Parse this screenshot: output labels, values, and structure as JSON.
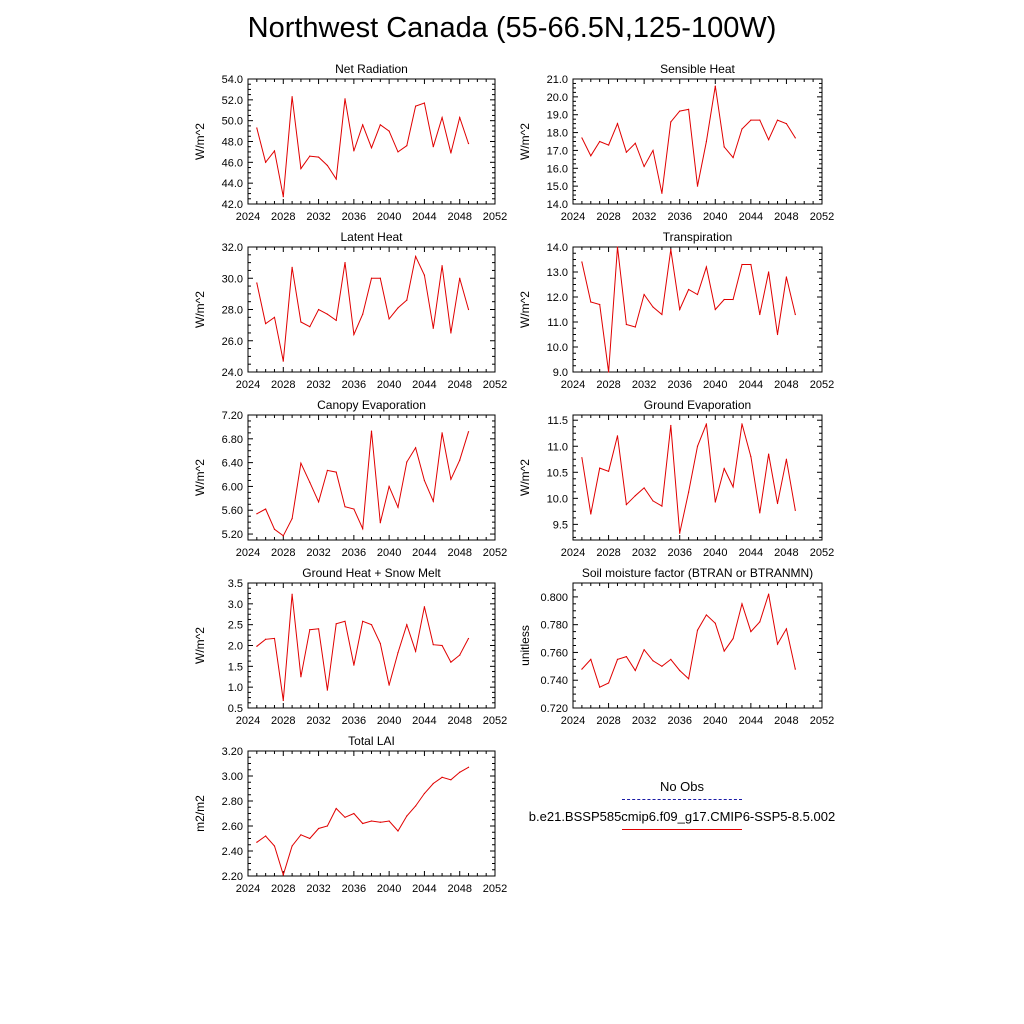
{
  "figure": {
    "title": "Northwest Canada (55-66.5N,125-100W)",
    "line_color": "#e00000",
    "obs_color": "#1a1aa6"
  },
  "legend": {
    "obs_label": "No Obs",
    "model_label": "b.e21.BSSP585cmip6.f09_g17.CMIP6-SSP5-8.5.002"
  },
  "chart_data": [
    {
      "type": "line",
      "title": "Net Radiation",
      "ylabel": "W/m^2",
      "xlim": [
        2024,
        2052
      ],
      "xticks": [
        2024,
        2028,
        2032,
        2036,
        2040,
        2044,
        2048,
        2052
      ],
      "ylim": [
        42,
        54
      ],
      "yticks": [
        "42.0",
        "44.0",
        "46.0",
        "48.0",
        "50.0",
        "52.0",
        "54.0"
      ],
      "x": [
        2025,
        2026,
        2027,
        2028,
        2029,
        2030,
        2031,
        2032,
        2033,
        2034,
        2035,
        2036,
        2037,
        2038,
        2039,
        2040,
        2041,
        2042,
        2043,
        2044,
        2045,
        2046,
        2047,
        2048,
        2049
      ],
      "values": [
        49.3,
        46.0,
        47.1,
        42.7,
        52.3,
        45.4,
        46.6,
        46.5,
        45.7,
        44.4,
        52.1,
        47.1,
        49.6,
        47.4,
        49.6,
        49.0,
        47.0,
        47.6,
        51.4,
        51.7,
        47.5,
        50.3,
        46.9,
        50.3,
        47.8
      ]
    },
    {
      "type": "line",
      "title": "Sensible Heat",
      "ylabel": "W/m^2",
      "xlim": [
        2024,
        2052
      ],
      "xticks": [
        2024,
        2028,
        2032,
        2036,
        2040,
        2044,
        2048,
        2052
      ],
      "ylim": [
        14,
        21
      ],
      "yticks": [
        "14.0",
        "15.0",
        "16.0",
        "17.0",
        "18.0",
        "19.0",
        "20.0",
        "21.0"
      ],
      "x": [
        2025,
        2026,
        2027,
        2028,
        2029,
        2030,
        2031,
        2032,
        2033,
        2034,
        2035,
        2036,
        2037,
        2038,
        2039,
        2040,
        2041,
        2042,
        2043,
        2044,
        2045,
        2046,
        2047,
        2048,
        2049
      ],
      "values": [
        17.7,
        16.7,
        17.5,
        17.3,
        18.5,
        16.9,
        17.4,
        16.1,
        17.0,
        14.6,
        18.6,
        19.2,
        19.3,
        15.0,
        17.5,
        20.6,
        17.2,
        16.6,
        18.2,
        18.7,
        18.7,
        17.6,
        18.7,
        18.5,
        17.7
      ]
    },
    {
      "type": "line",
      "title": "Latent Heat",
      "ylabel": "W/m^2",
      "xlim": [
        2024,
        2052
      ],
      "xticks": [
        2024,
        2028,
        2032,
        2036,
        2040,
        2044,
        2048,
        2052
      ],
      "ylim": [
        24,
        32
      ],
      "yticks": [
        "24.0",
        "26.0",
        "28.0",
        "30.0",
        "32.0"
      ],
      "x": [
        2025,
        2026,
        2027,
        2028,
        2029,
        2030,
        2031,
        2032,
        2033,
        2034,
        2035,
        2036,
        2037,
        2038,
        2039,
        2040,
        2041,
        2042,
        2043,
        2044,
        2045,
        2046,
        2047,
        2048,
        2049
      ],
      "values": [
        29.7,
        27.1,
        27.5,
        24.7,
        30.7,
        27.2,
        26.9,
        28.0,
        27.7,
        27.3,
        31.0,
        26.4,
        27.7,
        30.0,
        30.0,
        27.4,
        28.1,
        28.6,
        31.4,
        30.2,
        26.8,
        30.8,
        26.5,
        30.0,
        28.0
      ]
    },
    {
      "type": "line",
      "title": "Transpiration",
      "ylabel": "W/m^2",
      "xlim": [
        2024,
        2052
      ],
      "xticks": [
        2024,
        2028,
        2032,
        2036,
        2040,
        2044,
        2048,
        2052
      ],
      "ylim": [
        9,
        14
      ],
      "yticks": [
        "9.0",
        "10.0",
        "11.0",
        "12.0",
        "13.0",
        "14.0"
      ],
      "x": [
        2025,
        2026,
        2027,
        2028,
        2029,
        2030,
        2031,
        2032,
        2033,
        2034,
        2035,
        2036,
        2037,
        2038,
        2039,
        2040,
        2041,
        2042,
        2043,
        2044,
        2045,
        2046,
        2047,
        2048,
        2049
      ],
      "values": [
        13.4,
        11.8,
        11.7,
        9.0,
        14.0,
        10.9,
        10.8,
        12.1,
        11.6,
        11.3,
        13.9,
        11.5,
        12.3,
        12.1,
        13.2,
        11.5,
        11.9,
        11.9,
        13.3,
        13.3,
        11.3,
        13.0,
        10.5,
        12.8,
        11.3
      ]
    },
    {
      "type": "line",
      "title": "Canopy Evaporation",
      "ylabel": "W/m^2",
      "xlim": [
        2024,
        2052
      ],
      "xticks": [
        2024,
        2028,
        2032,
        2036,
        2040,
        2044,
        2048,
        2052
      ],
      "ylim": [
        5.1,
        7.2
      ],
      "yticks": [
        "5.20",
        "5.60",
        "6.00",
        "6.40",
        "6.80",
        "7.20"
      ],
      "x": [
        2025,
        2026,
        2027,
        2028,
        2029,
        2030,
        2031,
        2032,
        2033,
        2034,
        2035,
        2036,
        2037,
        2038,
        2039,
        2040,
        2041,
        2042,
        2043,
        2044,
        2045,
        2046,
        2047,
        2048,
        2049
      ],
      "values": [
        5.54,
        5.62,
        5.28,
        5.17,
        5.46,
        6.39,
        6.07,
        5.74,
        6.27,
        6.24,
        5.66,
        5.62,
        5.29,
        6.93,
        5.39,
        6.0,
        5.65,
        6.41,
        6.65,
        6.1,
        5.75,
        6.9,
        6.12,
        6.44,
        6.92
      ]
    },
    {
      "type": "line",
      "title": "Ground Evaporation",
      "ylabel": "W/m^2",
      "xlim": [
        2024,
        2052
      ],
      "xticks": [
        2024,
        2028,
        2032,
        2036,
        2040,
        2044,
        2048,
        2052
      ],
      "ylim": [
        9.2,
        11.6
      ],
      "yticks": [
        "9.5",
        "10.0",
        "10.5",
        "11.0",
        "11.5"
      ],
      "x": [
        2025,
        2026,
        2027,
        2028,
        2029,
        2030,
        2031,
        2032,
        2033,
        2034,
        2035,
        2036,
        2037,
        2038,
        2039,
        2040,
        2041,
        2042,
        2043,
        2044,
        2045,
        2046,
        2047,
        2048,
        2049
      ],
      "values": [
        10.78,
        9.7,
        10.58,
        10.52,
        11.2,
        9.88,
        10.05,
        10.2,
        9.95,
        9.85,
        11.4,
        9.33,
        10.12,
        11.0,
        11.43,
        9.93,
        10.57,
        10.22,
        11.43,
        10.8,
        9.72,
        10.85,
        9.9,
        10.75,
        9.77
      ]
    },
    {
      "type": "line",
      "title": "Ground Heat + Snow Melt",
      "ylabel": "W/m^2",
      "xlim": [
        2024,
        2052
      ],
      "xticks": [
        2024,
        2028,
        2032,
        2036,
        2040,
        2044,
        2048,
        2052
      ],
      "ylim": [
        0.5,
        3.5
      ],
      "yticks": [
        "0.5",
        "1.0",
        "1.5",
        "2.0",
        "2.5",
        "3.0",
        "3.5"
      ],
      "x": [
        2025,
        2026,
        2027,
        2028,
        2029,
        2030,
        2031,
        2032,
        2033,
        2034,
        2035,
        2036,
        2037,
        2038,
        2039,
        2040,
        2041,
        2042,
        2043,
        2044,
        2045,
        2046,
        2047,
        2048,
        2049
      ],
      "values": [
        1.98,
        2.15,
        2.17,
        0.68,
        3.23,
        1.25,
        2.38,
        2.4,
        0.93,
        2.52,
        2.58,
        1.53,
        2.58,
        2.5,
        2.05,
        1.05,
        1.83,
        2.5,
        1.86,
        2.93,
        2.02,
        2.0,
        1.6,
        1.77,
        2.17
      ]
    },
    {
      "type": "line",
      "title": "Soil moisture factor (BTRAN or BTRANMN)",
      "ylabel": "unitless",
      "xlim": [
        2024,
        2052
      ],
      "xticks": [
        2024,
        2028,
        2032,
        2036,
        2040,
        2044,
        2048,
        2052
      ],
      "ylim": [
        0.72,
        0.81
      ],
      "yticks": [
        "0.720",
        "0.740",
        "0.760",
        "0.780",
        "0.800"
      ],
      "x": [
        2025,
        2026,
        2027,
        2028,
        2029,
        2030,
        2031,
        2032,
        2033,
        2034,
        2035,
        2036,
        2037,
        2038,
        2039,
        2040,
        2041,
        2042,
        2043,
        2044,
        2045,
        2046,
        2047,
        2048,
        2049
      ],
      "values": [
        0.748,
        0.755,
        0.735,
        0.738,
        0.755,
        0.757,
        0.747,
        0.762,
        0.754,
        0.75,
        0.755,
        0.747,
        0.741,
        0.776,
        0.787,
        0.781,
        0.761,
        0.77,
        0.795,
        0.775,
        0.782,
        0.802,
        0.766,
        0.777,
        0.748
      ]
    },
    {
      "type": "line",
      "title": "Total LAI",
      "ylabel": "m2/m2",
      "xlim": [
        2024,
        2052
      ],
      "xticks": [
        2024,
        2028,
        2032,
        2036,
        2040,
        2044,
        2048,
        2052
      ],
      "ylim": [
        2.2,
        3.2
      ],
      "yticks": [
        "2.20",
        "2.40",
        "2.60",
        "2.80",
        "3.00",
        "3.20"
      ],
      "x": [
        2025,
        2026,
        2027,
        2028,
        2029,
        2030,
        2031,
        2032,
        2033,
        2034,
        2035,
        2036,
        2037,
        2038,
        2039,
        2040,
        2041,
        2042,
        2043,
        2044,
        2045,
        2046,
        2047,
        2048,
        2049
      ],
      "values": [
        2.47,
        2.52,
        2.44,
        2.21,
        2.44,
        2.53,
        2.5,
        2.58,
        2.6,
        2.74,
        2.67,
        2.7,
        2.62,
        2.64,
        2.63,
        2.64,
        2.56,
        2.68,
        2.76,
        2.86,
        2.94,
        2.99,
        2.97,
        3.03,
        3.07
      ]
    }
  ]
}
